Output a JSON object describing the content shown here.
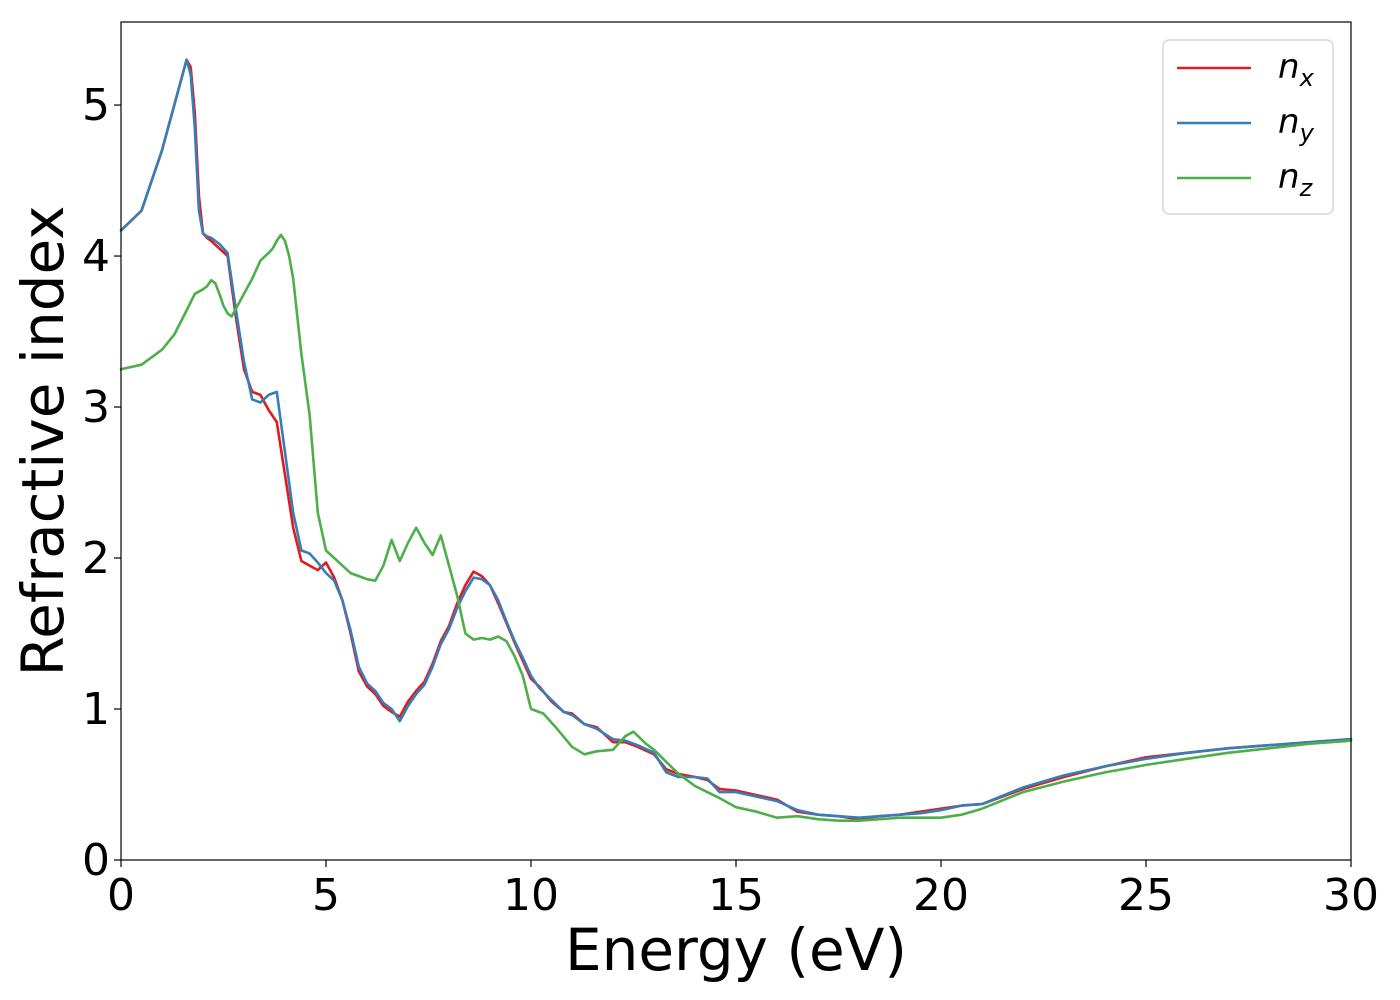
{
  "chart_data": {
    "type": "line",
    "title": "",
    "xlabel": "Energy (eV)",
    "ylabel": "Refractive index",
    "xlim": [
      0,
      30
    ],
    "ylim": [
      0,
      5.55
    ],
    "xticks": [
      0,
      5,
      10,
      15,
      20,
      25,
      30
    ],
    "yticks": [
      0,
      1,
      2,
      3,
      4,
      5
    ],
    "xtick_labels": [
      "0",
      "5",
      "10",
      "15",
      "20",
      "25",
      "30"
    ],
    "ytick_labels": [
      "0",
      "1",
      "2",
      "3",
      "4",
      "5"
    ],
    "grid": false,
    "legend_position": "top-right",
    "series": [
      {
        "name": "n_x",
        "label_base": "n",
        "label_sub": "x",
        "color": "#e41a1c",
        "x": [
          0,
          0.5,
          1.0,
          1.3,
          1.5,
          1.6,
          1.7,
          1.8,
          1.9,
          2.0,
          2.1,
          2.2,
          2.4,
          2.6,
          2.8,
          3.0,
          3.2,
          3.4,
          3.6,
          3.8,
          4.0,
          4.2,
          4.4,
          4.6,
          4.8,
          5.0,
          5.2,
          5.4,
          5.6,
          5.8,
          6.0,
          6.2,
          6.4,
          6.6,
          6.8,
          7.0,
          7.2,
          7.4,
          7.6,
          7.8,
          8.0,
          8.2,
          8.4,
          8.6,
          8.8,
          9.0,
          9.2,
          9.4,
          9.6,
          9.8,
          10.0,
          10.2,
          10.5,
          10.8,
          11.0,
          11.3,
          11.6,
          12.0,
          12.3,
          12.6,
          13.0,
          13.3,
          13.6,
          14.0,
          14.3,
          14.6,
          15.0,
          15.5,
          16.0,
          16.5,
          17.0,
          17.5,
          18.0,
          18.5,
          19.0,
          19.5,
          20.0,
          20.5,
          21.0,
          22.0,
          23.0,
          24.0,
          25.0,
          26.0,
          27.0,
          28.0,
          29.0,
          30.0
        ],
        "values": [
          4.17,
          4.3,
          4.7,
          5.0,
          5.2,
          5.3,
          5.25,
          4.95,
          4.4,
          4.15,
          4.12,
          4.1,
          4.05,
          4.0,
          3.6,
          3.25,
          3.1,
          3.08,
          2.98,
          2.9,
          2.55,
          2.2,
          1.98,
          1.95,
          1.92,
          1.97,
          1.87,
          1.72,
          1.5,
          1.25,
          1.15,
          1.1,
          1.02,
          0.98,
          0.95,
          1.05,
          1.12,
          1.18,
          1.3,
          1.45,
          1.55,
          1.7,
          1.82,
          1.91,
          1.88,
          1.82,
          1.7,
          1.57,
          1.44,
          1.32,
          1.2,
          1.15,
          1.05,
          0.98,
          0.97,
          0.9,
          0.88,
          0.78,
          0.78,
          0.75,
          0.7,
          0.6,
          0.57,
          0.55,
          0.53,
          0.47,
          0.46,
          0.43,
          0.4,
          0.32,
          0.3,
          0.29,
          0.27,
          0.29,
          0.3,
          0.32,
          0.34,
          0.36,
          0.37,
          0.47,
          0.55,
          0.62,
          0.68,
          0.71,
          0.74,
          0.76,
          0.78,
          0.8
        ]
      },
      {
        "name": "n_y",
        "label_base": "n",
        "label_sub": "y",
        "color": "#377eb8",
        "x": [
          0,
          0.5,
          1.0,
          1.3,
          1.5,
          1.6,
          1.7,
          1.8,
          1.9,
          2.0,
          2.1,
          2.2,
          2.4,
          2.6,
          2.8,
          3.0,
          3.2,
          3.4,
          3.6,
          3.8,
          4.0,
          4.2,
          4.4,
          4.6,
          4.8,
          5.0,
          5.2,
          5.4,
          5.6,
          5.8,
          6.0,
          6.2,
          6.4,
          6.6,
          6.8,
          7.0,
          7.2,
          7.4,
          7.6,
          7.8,
          8.0,
          8.2,
          8.4,
          8.6,
          8.8,
          9.0,
          9.2,
          9.4,
          9.6,
          9.8,
          10.0,
          10.2,
          10.5,
          10.8,
          11.0,
          11.3,
          11.6,
          12.0,
          12.3,
          12.6,
          13.0,
          13.3,
          13.6,
          14.0,
          14.3,
          14.6,
          15.0,
          15.5,
          16.0,
          16.5,
          17.0,
          17.5,
          18.0,
          18.5,
          19.0,
          19.5,
          20.0,
          20.5,
          21.0,
          22.0,
          23.0,
          24.0,
          25.0,
          26.0,
          27.0,
          28.0,
          29.0,
          30.0
        ],
        "values": [
          4.17,
          4.3,
          4.7,
          5.0,
          5.2,
          5.3,
          5.2,
          4.85,
          4.3,
          4.15,
          4.13,
          4.12,
          4.08,
          4.02,
          3.65,
          3.3,
          3.05,
          3.03,
          3.08,
          3.1,
          2.7,
          2.3,
          2.05,
          2.03,
          1.97,
          1.9,
          1.85,
          1.72,
          1.52,
          1.28,
          1.17,
          1.12,
          1.04,
          1.0,
          0.92,
          1.02,
          1.1,
          1.16,
          1.28,
          1.43,
          1.53,
          1.67,
          1.78,
          1.87,
          1.86,
          1.82,
          1.72,
          1.58,
          1.45,
          1.34,
          1.22,
          1.14,
          1.06,
          0.98,
          0.96,
          0.9,
          0.87,
          0.8,
          0.79,
          0.76,
          0.71,
          0.58,
          0.55,
          0.55,
          0.54,
          0.45,
          0.45,
          0.42,
          0.39,
          0.33,
          0.3,
          0.29,
          0.28,
          0.29,
          0.3,
          0.31,
          0.33,
          0.36,
          0.37,
          0.48,
          0.56,
          0.62,
          0.67,
          0.71,
          0.74,
          0.76,
          0.78,
          0.8
        ]
      },
      {
        "name": "n_z",
        "label_base": "n",
        "label_sub": "z",
        "color": "#4daf4a",
        "x": [
          0,
          0.5,
          1.0,
          1.3,
          1.6,
          1.8,
          2.0,
          2.1,
          2.2,
          2.3,
          2.4,
          2.5,
          2.6,
          2.7,
          2.8,
          3.0,
          3.2,
          3.4,
          3.6,
          3.7,
          3.8,
          3.9,
          4.0,
          4.1,
          4.2,
          4.4,
          4.6,
          4.8,
          5.0,
          5.2,
          5.4,
          5.6,
          5.8,
          6.0,
          6.2,
          6.4,
          6.6,
          6.8,
          7.0,
          7.2,
          7.4,
          7.6,
          7.8,
          8.0,
          8.2,
          8.4,
          8.6,
          8.8,
          9.0,
          9.2,
          9.4,
          9.6,
          9.8,
          10.0,
          10.3,
          10.6,
          11.0,
          11.3,
          11.6,
          12.0,
          12.3,
          12.5,
          12.8,
          13.0,
          13.3,
          13.6,
          14.0,
          14.3,
          14.6,
          15.0,
          15.5,
          16.0,
          16.5,
          17.0,
          17.5,
          18.0,
          18.5,
          19.0,
          19.5,
          20.0,
          20.5,
          21.0,
          22.0,
          23.0,
          24.0,
          25.0,
          26.0,
          27.0,
          28.0,
          29.0,
          30.0
        ],
        "values": [
          3.25,
          3.28,
          3.38,
          3.48,
          3.64,
          3.75,
          3.78,
          3.8,
          3.84,
          3.82,
          3.75,
          3.67,
          3.62,
          3.6,
          3.65,
          3.75,
          3.85,
          3.97,
          4.02,
          4.05,
          4.1,
          4.14,
          4.1,
          4.0,
          3.85,
          3.35,
          2.95,
          2.3,
          2.05,
          2.0,
          1.95,
          1.9,
          1.88,
          1.86,
          1.85,
          1.95,
          2.12,
          1.98,
          2.1,
          2.2,
          2.1,
          2.02,
          2.15,
          1.95,
          1.75,
          1.5,
          1.46,
          1.47,
          1.46,
          1.48,
          1.45,
          1.35,
          1.22,
          1.0,
          0.97,
          0.88,
          0.75,
          0.7,
          0.72,
          0.73,
          0.82,
          0.85,
          0.77,
          0.73,
          0.65,
          0.57,
          0.49,
          0.45,
          0.41,
          0.35,
          0.32,
          0.28,
          0.29,
          0.27,
          0.26,
          0.26,
          0.27,
          0.28,
          0.28,
          0.28,
          0.3,
          0.34,
          0.45,
          0.52,
          0.58,
          0.63,
          0.67,
          0.71,
          0.74,
          0.77,
          0.79
        ]
      }
    ]
  }
}
